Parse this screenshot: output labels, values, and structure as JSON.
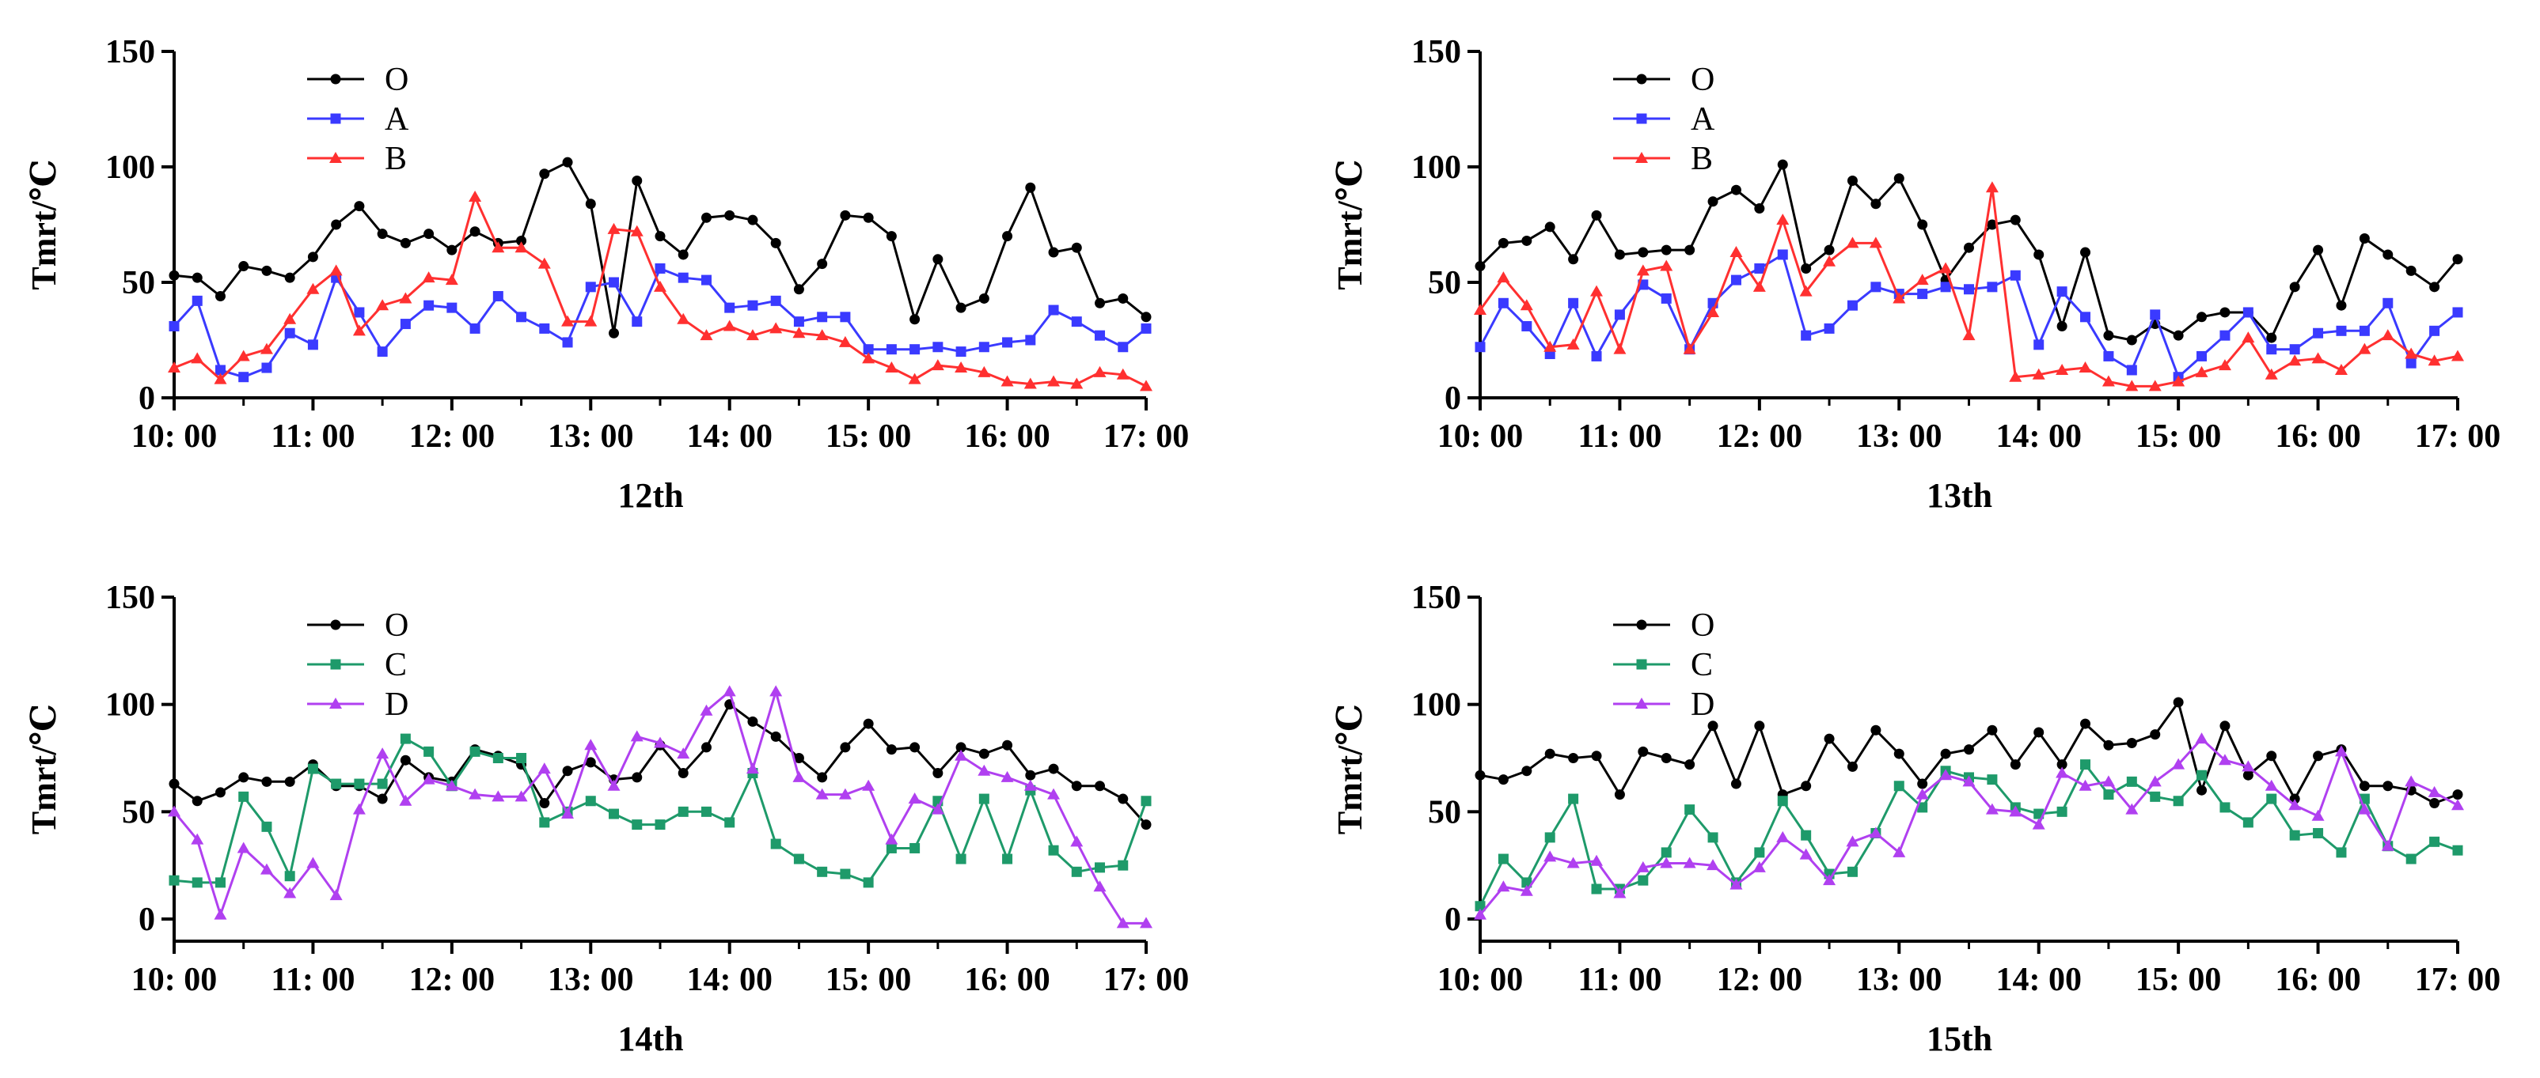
{
  "chart_data": [
    {
      "type": "line",
      "title": "12th",
      "xlabel": "12th",
      "ylabel": "Tmrt/℃",
      "x_ticks": [
        "10: 00",
        "11: 00",
        "12: 00",
        "13: 00",
        "14: 00",
        "15: 00",
        "16: 00",
        "17: 00"
      ],
      "y_ticks": [
        "0",
        "50",
        "100",
        "150"
      ],
      "ylim": [
        0,
        150
      ],
      "xlim": [
        0,
        420
      ],
      "x": [
        0,
        10,
        20,
        30,
        40,
        50,
        60,
        70,
        80,
        90,
        100,
        110,
        120,
        130,
        140,
        150,
        160,
        170,
        180,
        190,
        200,
        210,
        220,
        230,
        240,
        250,
        260,
        270,
        280,
        290,
        300,
        310,
        320,
        330,
        340,
        350,
        360,
        370,
        380,
        390,
        400,
        410,
        420
      ],
      "legend_position": "top-left",
      "series": [
        {
          "name": "O",
          "color": "#000000",
          "marker": "circle",
          "values": [
            53,
            52,
            44,
            57,
            55,
            52,
            61,
            75,
            83,
            71,
            67,
            71,
            64,
            72,
            67,
            68,
            97,
            102,
            84,
            28,
            94,
            70,
            62,
            78,
            79,
            77,
            67,
            47,
            58,
            79,
            78,
            70,
            34,
            60,
            39,
            43,
            70,
            91,
            63,
            65,
            41,
            43,
            35
          ]
        },
        {
          "name": "A",
          "color": "#3a3aff",
          "marker": "square",
          "values": [
            31,
            42,
            12,
            9,
            13,
            28,
            23,
            52,
            37,
            20,
            32,
            40,
            39,
            30,
            44,
            35,
            30,
            24,
            48,
            50,
            33,
            56,
            52,
            51,
            39,
            40,
            42,
            33,
            35,
            35,
            21,
            21,
            21,
            22,
            20,
            22,
            24,
            25,
            38,
            33,
            27,
            22,
            30
          ]
        },
        {
          "name": "B",
          "color": "#ff3030",
          "marker": "triangle",
          "values": [
            13,
            17,
            8,
            18,
            21,
            34,
            47,
            55,
            29,
            40,
            43,
            52,
            51,
            87,
            65,
            65,
            58,
            33,
            33,
            73,
            72,
            48,
            34,
            27,
            31,
            27,
            30,
            28,
            27,
            24,
            17,
            13,
            8,
            14,
            13,
            11,
            7,
            6,
            7,
            6,
            11,
            10,
            5
          ]
        }
      ]
    },
    {
      "type": "line",
      "title": "13th",
      "xlabel": "13th",
      "ylabel": "Tmrt/℃",
      "x_ticks": [
        "10: 00",
        "11: 00",
        "12: 00",
        "13: 00",
        "14: 00",
        "15: 00",
        "16: 00",
        "17: 00"
      ],
      "y_ticks": [
        "0",
        "50",
        "100",
        "150"
      ],
      "ylim": [
        0,
        150
      ],
      "xlim": [
        0,
        420
      ],
      "x": [
        0,
        10,
        20,
        30,
        40,
        50,
        60,
        70,
        80,
        90,
        100,
        110,
        120,
        130,
        140,
        150,
        160,
        170,
        180,
        190,
        200,
        210,
        220,
        230,
        240,
        250,
        260,
        270,
        280,
        290,
        300,
        310,
        320,
        330,
        340,
        350,
        360,
        370,
        380,
        390,
        400,
        410,
        420
      ],
      "legend_position": "top-left",
      "series": [
        {
          "name": "O",
          "color": "#000000",
          "marker": "circle",
          "values": [
            57,
            67,
            68,
            74,
            60,
            79,
            62,
            63,
            64,
            64,
            85,
            90,
            82,
            101,
            56,
            64,
            94,
            84,
            95,
            75,
            51,
            65,
            75,
            77,
            62,
            31,
            63,
            27,
            25,
            32,
            27,
            35,
            37,
            37,
            26,
            48,
            64,
            40,
            69,
            62,
            55,
            48,
            60
          ]
        },
        {
          "name": "A",
          "color": "#3a3aff",
          "marker": "square",
          "values": [
            22,
            41,
            31,
            19,
            41,
            18,
            36,
            49,
            43,
            21,
            41,
            51,
            56,
            62,
            27,
            30,
            40,
            48,
            45,
            45,
            48,
            47,
            48,
            53,
            23,
            46,
            35,
            18,
            12,
            36,
            9,
            18,
            27,
            37,
            21,
            21,
            28,
            29,
            29,
            41,
            15,
            29,
            37
          ]
        },
        {
          "name": "B",
          "color": "#ff3030",
          "marker": "triangle",
          "values": [
            38,
            52,
            40,
            22,
            23,
            46,
            21,
            55,
            57,
            21,
            37,
            63,
            48,
            77,
            46,
            59,
            67,
            67,
            43,
            51,
            56,
            27,
            91,
            9,
            10,
            12,
            13,
            7,
            5,
            5,
            7,
            11,
            14,
            26,
            10,
            16,
            17,
            12,
            21,
            27,
            19,
            16,
            18
          ]
        }
      ]
    },
    {
      "type": "line",
      "title": "14th",
      "xlabel": "14th",
      "ylabel": "Tmrt/℃",
      "x_ticks": [
        "10: 00",
        "11: 00",
        "12: 00",
        "13: 00",
        "14: 00",
        "15: 00",
        "16: 00",
        "17: 00"
      ],
      "y_ticks": [
        "0",
        "50",
        "100",
        "150"
      ],
      "ylim": [
        -10,
        150
      ],
      "xlim": [
        0,
        420
      ],
      "x": [
        0,
        10,
        20,
        30,
        40,
        50,
        60,
        70,
        80,
        90,
        100,
        110,
        120,
        130,
        140,
        150,
        160,
        170,
        180,
        190,
        200,
        210,
        220,
        230,
        240,
        250,
        260,
        270,
        280,
        290,
        300,
        310,
        320,
        330,
        340,
        350,
        360,
        370,
        380,
        390,
        400,
        410,
        420
      ],
      "legend_position": "top-left",
      "series": [
        {
          "name": "O",
          "color": "#000000",
          "marker": "circle",
          "values": [
            63,
            55,
            59,
            66,
            64,
            64,
            72,
            62,
            62,
            56,
            74,
            66,
            64,
            79,
            76,
            72,
            54,
            69,
            73,
            65,
            66,
            81,
            68,
            80,
            100,
            92,
            85,
            75,
            66,
            80,
            91,
            79,
            80,
            68,
            80,
            77,
            81,
            67,
            70,
            62,
            62,
            56,
            44
          ]
        },
        {
          "name": "C",
          "color": "#1e9a6a",
          "marker": "square",
          "values": [
            18,
            17,
            17,
            57,
            43,
            20,
            70,
            63,
            63,
            63,
            84,
            78,
            62,
            78,
            75,
            75,
            45,
            50,
            55,
            49,
            44,
            44,
            50,
            50,
            45,
            68,
            35,
            28,
            22,
            21,
            17,
            33,
            33,
            55,
            28,
            56,
            28,
            60,
            32,
            22,
            24,
            25,
            55
          ]
        },
        {
          "name": "D",
          "color": "#b040f0",
          "marker": "triangle",
          "values": [
            50,
            37,
            2,
            33,
            23,
            12,
            26,
            11,
            51,
            77,
            55,
            65,
            62,
            58,
            57,
            57,
            70,
            49,
            81,
            62,
            85,
            82,
            77,
            97,
            106,
            70,
            106,
            66,
            58,
            58,
            62,
            37,
            56,
            51,
            76,
            69,
            66,
            62,
            58,
            36,
            15,
            -2,
            -2
          ]
        }
      ]
    },
    {
      "type": "line",
      "title": "15th",
      "xlabel": "15th",
      "ylabel": "Tmrt/℃",
      "x_ticks": [
        "10: 00",
        "11: 00",
        "12: 00",
        "13: 00",
        "14: 00",
        "15: 00",
        "16: 00",
        "17: 00"
      ],
      "y_ticks": [
        "0",
        "50",
        "100",
        "150"
      ],
      "ylim": [
        -10,
        150
      ],
      "xlim": [
        0,
        420
      ],
      "x": [
        0,
        10,
        20,
        30,
        40,
        50,
        60,
        70,
        80,
        90,
        100,
        110,
        120,
        130,
        140,
        150,
        160,
        170,
        180,
        190,
        200,
        210,
        220,
        230,
        240,
        250,
        260,
        270,
        280,
        290,
        300,
        310,
        320,
        330,
        340,
        350,
        360,
        370,
        380,
        390,
        400,
        410,
        420
      ],
      "legend_position": "top-left",
      "series": [
        {
          "name": "O",
          "color": "#000000",
          "marker": "circle",
          "values": [
            67,
            65,
            69,
            77,
            75,
            76,
            58,
            78,
            75,
            72,
            90,
            63,
            90,
            58,
            62,
            84,
            71,
            88,
            77,
            63,
            77,
            79,
            88,
            72,
            87,
            72,
            91,
            81,
            82,
            86,
            101,
            60,
            90,
            67,
            76,
            56,
            76,
            79,
            62,
            62,
            60,
            54,
            58
          ]
        },
        {
          "name": "C",
          "color": "#1e9a6a",
          "marker": "square",
          "values": [
            6,
            28,
            17,
            38,
            56,
            14,
            14,
            18,
            31,
            51,
            38,
            17,
            31,
            55,
            39,
            21,
            22,
            40,
            62,
            52,
            69,
            66,
            65,
            52,
            49,
            50,
            72,
            58,
            64,
            57,
            55,
            67,
            52,
            45,
            56,
            39,
            40,
            31,
            56,
            34,
            28,
            36,
            32
          ]
        },
        {
          "name": "D",
          "color": "#b040f0",
          "marker": "triangle",
          "values": [
            2,
            15,
            13,
            29,
            26,
            27,
            12,
            24,
            26,
            26,
            25,
            16,
            24,
            38,
            30,
            18,
            36,
            40,
            31,
            58,
            67,
            64,
            51,
            50,
            44,
            68,
            62,
            64,
            51,
            64,
            72,
            84,
            74,
            71,
            62,
            53,
            48,
            78,
            51,
            34,
            64,
            59,
            53
          ]
        }
      ]
    }
  ]
}
